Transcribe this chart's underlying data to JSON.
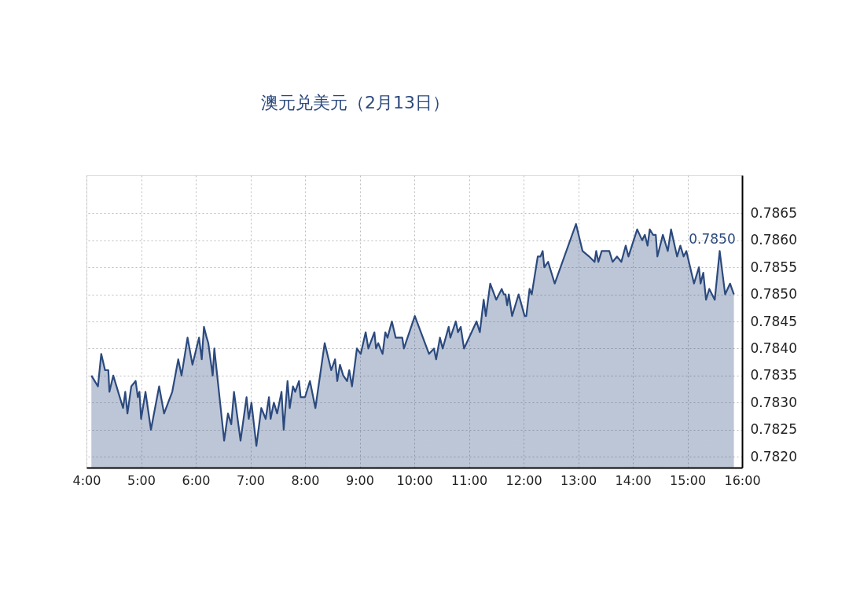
{
  "chart_data": {
    "type": "area",
    "title": "澳元兑美元（2月13日）",
    "x": [
      4.09,
      4.21,
      4.27,
      4.34,
      4.4,
      4.42,
      4.49,
      4.67,
      4.71,
      4.75,
      4.82,
      4.9,
      4.94,
      4.97,
      5.0,
      5.08,
      5.18,
      5.33,
      5.42,
      5.57,
      5.68,
      5.74,
      5.85,
      5.94,
      6.06,
      6.11,
      6.15,
      6.2,
      6.23,
      6.31,
      6.34,
      6.52,
      6.59,
      6.65,
      6.7,
      6.82,
      6.93,
      6.97,
      7.02,
      7.11,
      7.2,
      7.28,
      7.34,
      7.37,
      7.43,
      7.49,
      7.57,
      7.61,
      7.68,
      7.72,
      7.78,
      7.82,
      7.89,
      7.92,
      8.0,
      8.09,
      8.19,
      8.36,
      8.48,
      8.55,
      8.59,
      8.64,
      8.7,
      8.77,
      8.81,
      8.86,
      8.95,
      9.02,
      9.11,
      9.16,
      9.27,
      9.3,
      9.34,
      9.42,
      9.47,
      9.51,
      9.59,
      9.66,
      9.78,
      9.81,
      10.01,
      10.27,
      10.36,
      10.4,
      10.47,
      10.52,
      10.63,
      10.66,
      10.76,
      10.8,
      10.85,
      10.91,
      11.14,
      11.2,
      11.27,
      11.31,
      11.39,
      11.5,
      11.6,
      11.64,
      11.67,
      11.7,
      11.73,
      11.79,
      11.91,
      12.02,
      12.05,
      12.11,
      12.15,
      12.26,
      12.31,
      12.35,
      12.38,
      12.45,
      12.57,
      12.96,
      13.08,
      13.2,
      13.3,
      13.33,
      13.37,
      13.43,
      13.5,
      13.57,
      13.63,
      13.71,
      13.79,
      13.87,
      13.92,
      14.08,
      14.17,
      14.22,
      14.27,
      14.31,
      14.37,
      14.42,
      14.45,
      14.55,
      14.64,
      14.7,
      14.81,
      14.87,
      14.93,
      14.98,
      15.12,
      15.21,
      15.24,
      15.29,
      15.34,
      15.4,
      15.5,
      15.59,
      15.69,
      15.78,
      15.85
    ],
    "series": [
      {
        "color": "#2c4a7e",
        "values": [
          0.7835,
          0.7833,
          0.7839,
          0.7836,
          0.7836,
          0.7832,
          0.7835,
          0.7829,
          0.7832,
          0.7828,
          0.7833,
          0.7834,
          0.7831,
          0.7832,
          0.7827,
          0.7832,
          0.7825,
          0.7833,
          0.7828,
          0.7832,
          0.7838,
          0.7835,
          0.7842,
          0.7837,
          0.7842,
          0.7838,
          0.7844,
          0.7842,
          0.7841,
          0.7835,
          0.784,
          0.7823,
          0.7828,
          0.7826,
          0.7832,
          0.7823,
          0.7831,
          0.7827,
          0.783,
          0.7822,
          0.7829,
          0.7827,
          0.7831,
          0.7827,
          0.783,
          0.7828,
          0.7832,
          0.7825,
          0.7834,
          0.7829,
          0.7833,
          0.7832,
          0.7834,
          0.7831,
          0.7831,
          0.7834,
          0.7829,
          0.7841,
          0.7836,
          0.7838,
          0.7834,
          0.7837,
          0.7835,
          0.7834,
          0.7836,
          0.7833,
          0.784,
          0.7839,
          0.7843,
          0.784,
          0.7843,
          0.784,
          0.7841,
          0.7839,
          0.7843,
          0.7842,
          0.7845,
          0.7842,
          0.7842,
          0.784,
          0.7846,
          0.7839,
          0.784,
          0.7838,
          0.7842,
          0.784,
          0.7844,
          0.7842,
          0.7845,
          0.7843,
          0.7844,
          0.784,
          0.7845,
          0.7843,
          0.7849,
          0.7846,
          0.7852,
          0.7849,
          0.7851,
          0.785,
          0.785,
          0.7848,
          0.785,
          0.7846,
          0.785,
          0.7846,
          0.7846,
          0.7851,
          0.785,
          0.7857,
          0.7857,
          0.7858,
          0.7855,
          0.7856,
          0.7852,
          0.7863,
          0.7858,
          0.7857,
          0.7856,
          0.7858,
          0.7856,
          0.7858,
          0.7858,
          0.7858,
          0.7856,
          0.7857,
          0.7856,
          0.7859,
          0.7857,
          0.7862,
          0.786,
          0.7861,
          0.7859,
          0.7862,
          0.7861,
          0.7861,
          0.7857,
          0.7861,
          0.7858,
          0.7862,
          0.7857,
          0.7859,
          0.7857,
          0.7858,
          0.7852,
          0.7855,
          0.7852,
          0.7854,
          0.7849,
          0.7851,
          0.7849,
          0.7858,
          0.785,
          0.7852,
          0.785
        ]
      }
    ],
    "xlim": [
      4,
      16
    ],
    "xticks": [
      {
        "value": 4,
        "label": "4:00"
      },
      {
        "value": 5,
        "label": "5:00"
      },
      {
        "value": 6,
        "label": "6:00"
      },
      {
        "value": 7,
        "label": "7:00"
      },
      {
        "value": 8,
        "label": "8:00"
      },
      {
        "value": 9,
        "label": "9:00"
      },
      {
        "value": 10,
        "label": "10:00"
      },
      {
        "value": 11,
        "label": "11:00"
      },
      {
        "value": 12,
        "label": "12:00"
      },
      {
        "value": 13,
        "label": "13:00"
      },
      {
        "value": 14,
        "label": "14:00"
      },
      {
        "value": 15,
        "label": "15:00"
      },
      {
        "value": 16,
        "label": "16:00"
      }
    ],
    "ylim": [
      0.7818,
      0.7872
    ],
    "yticks": [
      {
        "value": 0.782,
        "label": "0.7820"
      },
      {
        "value": 0.7825,
        "label": "0.7825"
      },
      {
        "value": 0.783,
        "label": "0.7830"
      },
      {
        "value": 0.7835,
        "label": "0.7835"
      },
      {
        "value": 0.784,
        "label": "0.7840"
      },
      {
        "value": 0.7845,
        "label": "0.7845"
      },
      {
        "value": 0.785,
        "label": "0.7850"
      },
      {
        "value": 0.7855,
        "label": "0.7855"
      },
      {
        "value": 0.786,
        "label": "0.7860"
      },
      {
        "value": 0.7865,
        "label": "0.7865"
      }
    ],
    "annotations": [
      "0.7850"
    ],
    "grid": true,
    "line_style": "solid"
  }
}
